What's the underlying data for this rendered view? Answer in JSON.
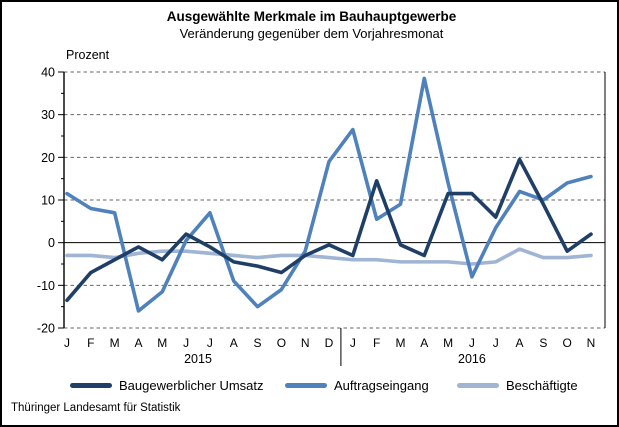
{
  "title": "Ausgewählte Merkmale im Bauhauptgewerbe",
  "subtitle": "Veränderung gegenüber dem Vorjahresmonat",
  "footer": "Thüringer Landesamt für Statistik",
  "chart_data": {
    "type": "line",
    "y_axis_unit_label": "Prozent",
    "ylim": [
      -20,
      40
    ],
    "y_major_ticks": [
      40,
      30,
      20,
      10,
      0,
      -10,
      -20
    ],
    "y_minor_step": 5,
    "grid": "horizontal dashed, solid zero line",
    "legend_position": "bottom",
    "x_months": [
      "J",
      "F",
      "M",
      "A",
      "M",
      "J",
      "J",
      "A",
      "S",
      "O",
      "N",
      "D",
      "J",
      "F",
      "M",
      "A",
      "M",
      "J",
      "J",
      "A",
      "S",
      "O",
      "N"
    ],
    "year_groups": [
      {
        "label": "2015",
        "first_index": 0,
        "last_index": 11
      },
      {
        "label": "2016",
        "first_index": 12,
        "last_index": 22
      }
    ],
    "series": [
      {
        "name": "Baugewerblicher Umsatz",
        "color": "#1F3F66",
        "values": [
          -13.5,
          -7,
          -4,
          -1,
          -4,
          2,
          -1,
          -4.5,
          -5.5,
          -7,
          -3,
          -0.5,
          -3,
          14.5,
          -0.5,
          -3,
          11.5,
          11.5,
          6,
          19.5,
          9,
          -2,
          2
        ]
      },
      {
        "name": "Auftragseingang",
        "color": "#4F81BD",
        "values": [
          11.5,
          8,
          7,
          -16,
          -11.5,
          0.5,
          7,
          -9,
          -15,
          -11,
          -2,
          19,
          26.5,
          5.5,
          9,
          38.5,
          14,
          -8,
          3.5,
          12,
          10,
          14,
          15.5
        ]
      },
      {
        "name": "Beschäftigte",
        "color": "#A0B4D4",
        "values": [
          -3,
          -3,
          -3.5,
          -2.5,
          -2,
          -2,
          -2.5,
          -3,
          -3.5,
          -3,
          -3,
          -3.5,
          -4,
          -4,
          -4.5,
          -4.5,
          -4.5,
          -5,
          -4.5,
          -1.5,
          -3.5,
          -3.5,
          -3
        ]
      }
    ],
    "style": {
      "axis_color": "#000000",
      "gridline_color": "#666666",
      "zero_line_color": "#000000",
      "text_color": "#000000"
    }
  }
}
